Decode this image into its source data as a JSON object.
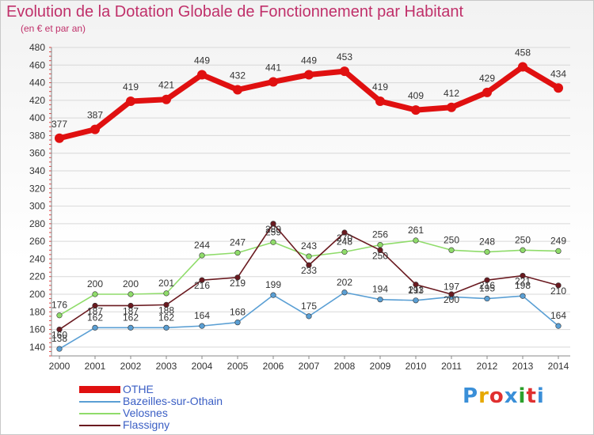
{
  "title": "Evolution de la Dotation Globale de Fonctionnement par Habitant",
  "subtitle": "(en € et par an)",
  "logo": {
    "text": "Proxiti",
    "colors": [
      "#3a8fd8",
      "#e6a800",
      "#e03030",
      "#3a8fd8",
      "#2ca02c",
      "#e03030",
      "#3a8fd8"
    ]
  },
  "chart_data": {
    "type": "line",
    "title": "Evolution de la Dotation Globale de Fonctionnement par Habitant",
    "subtitle": "(en € et par an)",
    "x": [
      2000,
      2001,
      2002,
      2003,
      2004,
      2005,
      2006,
      2007,
      2008,
      2009,
      2010,
      2011,
      2012,
      2013,
      2014
    ],
    "ylim": [
      130,
      480
    ],
    "yticks": [
      140,
      160,
      180,
      200,
      220,
      240,
      260,
      280,
      300,
      320,
      340,
      360,
      380,
      400,
      420,
      440,
      460,
      480
    ],
    "grid": "horizontal",
    "legend": "bottom-left",
    "series": [
      {
        "name": "OTHE",
        "color": "#e01010",
        "values": [
          377,
          387,
          419,
          421,
          449,
          432,
          441,
          449,
          453,
          419,
          409,
          412,
          429,
          458,
          434
        ]
      },
      {
        "name": "Bazeilles-sur-Othain",
        "color": "#5a9fd4",
        "values": [
          138,
          162,
          162,
          162,
          164,
          168,
          199,
          175,
          202,
          194,
          193,
          197,
          195,
          198,
          164
        ]
      },
      {
        "name": "Velosnes",
        "color": "#8fdc6a",
        "values": [
          176,
          200,
          200,
          201,
          244,
          247,
          259,
          243,
          248,
          256,
          261,
          250,
          248,
          250,
          249
        ]
      },
      {
        "name": "Flassigny",
        "color": "#6a1a20",
        "values": [
          160,
          187,
          187,
          188,
          216,
          219,
          280,
          233,
          270,
          250,
          211,
          200,
          216,
          221,
          210
        ]
      }
    ]
  }
}
